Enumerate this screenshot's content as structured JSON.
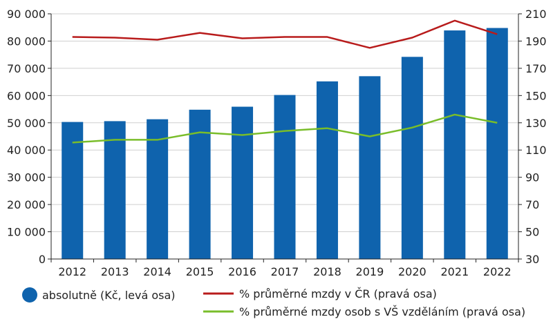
{
  "chart_data": {
    "type": "bar",
    "categories": [
      "2012",
      "2013",
      "2014",
      "2015",
      "2016",
      "2017",
      "2018",
      "2019",
      "2020",
      "2021",
      "2022"
    ],
    "ylim_left": [
      0,
      90000
    ],
    "yticks_left": [
      0,
      10000,
      20000,
      30000,
      40000,
      50000,
      60000,
      70000,
      80000,
      90000
    ],
    "ytick_labels_left": [
      "0",
      "10 000",
      "20 000",
      "30 000",
      "40 000",
      "50 000",
      "60 000",
      "70 000",
      "80 000",
      "90 000"
    ],
    "ylim_right": [
      30,
      210
    ],
    "yticks_right": [
      30,
      50,
      70,
      90,
      110,
      130,
      150,
      170,
      190,
      210
    ],
    "ytick_labels_right": [
      "30",
      "50",
      "70",
      "90",
      "110",
      "130",
      "150",
      "170",
      "190",
      "210"
    ],
    "series": [
      {
        "name": "absolutně (Kč, levá osa)",
        "kind": "bar",
        "axis": "left",
        "color": "#0f63ad",
        "values": [
          50300,
          50600,
          51300,
          54800,
          55900,
          60200,
          65200,
          67100,
          74200,
          83900,
          84800
        ]
      },
      {
        "name": "% průměrné mzdy v ČR (pravá osa)",
        "kind": "line",
        "axis": "right",
        "color": "#b81b1b",
        "values": [
          193,
          192.5,
          191,
          196,
          192,
          193,
          193,
          185,
          192.5,
          205,
          195
        ]
      },
      {
        "name": "% průměrné mzdy osob s VŠ vzděláním (pravá osa)",
        "kind": "line",
        "axis": "right",
        "color": "#79bd2a",
        "values": [
          115.5,
          117.5,
          117.5,
          123,
          121,
          124,
          126,
          120,
          126.5,
          136,
          130
        ]
      }
    ],
    "grid": true,
    "legend_position": "bottom"
  }
}
